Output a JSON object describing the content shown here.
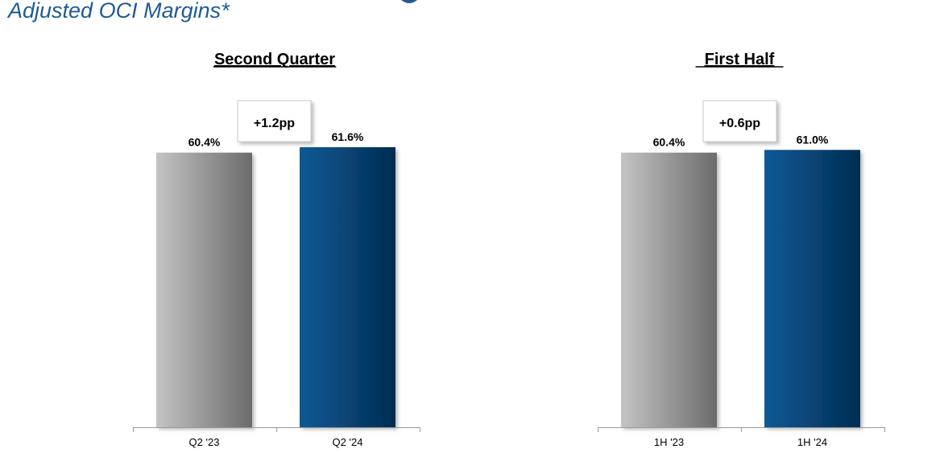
{
  "page": {
    "title": "Adjusted OCI Margins*"
  },
  "colors": {
    "title": "#1f5b94",
    "prior_light": "#c4c4c4",
    "prior_dark": "#6b6b6b",
    "current_light": "#0c5a96",
    "current_dark": "#032d52",
    "axis": "#9a9a9a",
    "text": "#000000"
  },
  "chart_data": [
    {
      "type": "bar",
      "title": "Second Quarter",
      "change_label": "+1.2pp",
      "categories": [
        "Q2 '23",
        "Q2 '24"
      ],
      "values": [
        60.4,
        61.6
      ],
      "value_labels": [
        "60.4%",
        "61.6%"
      ],
      "series_style": [
        "prior",
        "current"
      ],
      "ylim": [
        0,
        63
      ],
      "grid": false,
      "legend": "none"
    },
    {
      "type": "bar",
      "title": "First Half",
      "change_label": "+0.6pp",
      "categories": [
        "1H '23",
        "1H '24"
      ],
      "values": [
        60.4,
        61.0
      ],
      "value_labels": [
        "60.4%",
        "61.0%"
      ],
      "series_style": [
        "prior",
        "current"
      ],
      "ylim": [
        0,
        63
      ],
      "grid": false,
      "legend": "none"
    }
  ]
}
